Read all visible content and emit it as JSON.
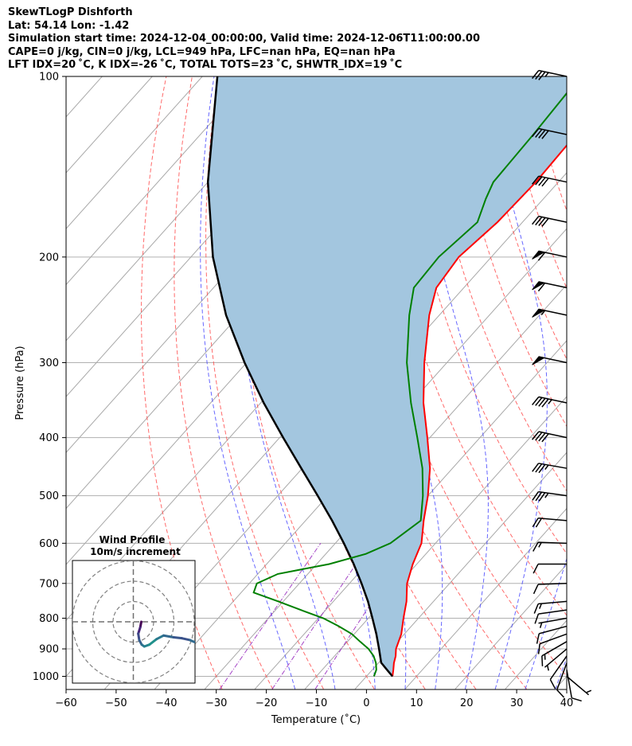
{
  "header": {
    "line1": "SkewTLogP Dishforth",
    "line2": "Lat: 54.14   Lon: -1.42",
    "line3": "Simulation start time: 2024-12-04_00:00:00, Valid time: 2024-12-06T11:00:00.00",
    "line4": "CAPE=0 j/kg, CIN=0 j/kg, LCL=949 hPa, LFC=nan hPa, EQ=nan hPa",
    "line5": "LFT IDX=20 ˚C, K IDX=-26 ˚C, TOTAL TOTS=23 ˚C, SHWTR_IDX=19 ˚C"
  },
  "chart_data": {
    "type": "skewt-logp",
    "title": "SkewTLogP Dishforth",
    "xlabel": "Temperature (˚C)",
    "ylabel": "Pressure (hPa)",
    "xlim": [
      -60,
      40
    ],
    "ylim": [
      1050,
      100
    ],
    "x_ticks": [
      -60,
      -50,
      -40,
      -30,
      -20,
      -10,
      0,
      10,
      20,
      30,
      40
    ],
    "x_tick_labels": [
      "−60",
      "−50",
      "−40",
      "−30",
      "−20",
      "−10",
      "0",
      "10",
      "20",
      "30",
      "40"
    ],
    "y_ticks": [
      1000,
      900,
      800,
      700,
      600,
      500,
      400,
      300,
      200,
      100
    ],
    "y_tick_labels": [
      "1000",
      "900",
      "800",
      "700",
      "600",
      "500",
      "400",
      "300",
      "200",
      "100"
    ],
    "temperature": {
      "name": "Temperature",
      "color": "#ff0000",
      "p": [
        1000,
        975,
        950,
        925,
        900,
        850,
        800,
        750,
        700,
        650,
        600,
        550,
        500,
        450,
        400,
        350,
        300,
        250,
        225,
        200,
        175,
        150,
        125,
        100
      ],
      "t": [
        5.2,
        4.2,
        3.1,
        2.2,
        1.0,
        -0.6,
        -3.0,
        -5.4,
        -8.5,
        -10.8,
        -12.8,
        -16.4,
        -20.0,
        -24.5,
        -30.5,
        -37.5,
        -44.5,
        -52.0,
        -55.5,
        -56.5,
        -55.0,
        -54.5,
        -55.0,
        -55.5
      ]
    },
    "dewpoint": {
      "name": "Dewpoint",
      "color": "#008000",
      "p": [
        1000,
        975,
        950,
        925,
        900,
        875,
        850,
        825,
        800,
        775,
        750,
        725,
        700,
        675,
        650,
        625,
        600,
        550,
        500,
        450,
        400,
        350,
        300,
        250,
        225,
        200,
        175,
        160,
        150,
        125,
        100
      ],
      "td": [
        1.5,
        0.8,
        -0.5,
        -2.2,
        -4.5,
        -7.5,
        -10.5,
        -14.5,
        -19.0,
        -25.0,
        -31.0,
        -37.5,
        -38.5,
        -36.0,
        -27.5,
        -22.0,
        -19.0,
        -17.0,
        -21.0,
        -26.0,
        -32.5,
        -40.0,
        -48.0,
        -56.0,
        -60.0,
        -60.5,
        -59.0,
        -61.5,
        -63.0,
        -63.5,
        -64.5
      ]
    },
    "parcel": {
      "name": "Parcel profile",
      "color": "#000000",
      "p": [
        1000,
        975,
        949,
        900,
        850,
        800,
        750,
        700,
        650,
        600,
        550,
        500,
        450,
        400,
        350,
        300,
        250,
        200,
        150,
        100
      ],
      "t": [
        5.2,
        2.9,
        0.5,
        -2.4,
        -5.6,
        -9.2,
        -13.1,
        -17.6,
        -22.6,
        -28.3,
        -34.7,
        -42.0,
        -50.2,
        -59.3,
        -69.4,
        -80.4,
        -92.6,
        -105.6,
        -120.0,
        -137.0
      ]
    },
    "shaded_area": {
      "name": "CIN region",
      "color": "#a3c6df"
    },
    "skew_reference_lines": {
      "isotherms": "gray",
      "dry_adiabats": "red dashed",
      "moist_adiabats": "blue dashed",
      "mixing_ratio": "purple dash-dot"
    },
    "wind_barbs": {
      "p": [
        1000,
        975,
        950,
        925,
        900,
        875,
        850,
        825,
        800,
        775,
        750,
        700,
        650,
        600,
        550,
        500,
        450,
        400,
        350,
        300,
        250,
        225,
        200,
        175,
        150,
        125,
        100
      ],
      "speed_kt": [
        5,
        10,
        10,
        10,
        5,
        15,
        10,
        10,
        5,
        10,
        15,
        10,
        10,
        15,
        20,
        35,
        35,
        40,
        45,
        50,
        55,
        60,
        60,
        40,
        40,
        40,
        35
      ],
      "dir_deg": [
        130,
        170,
        200,
        215,
        230,
        240,
        250,
        255,
        260,
        262,
        265,
        268,
        270,
        272,
        275,
        278,
        280,
        282,
        282,
        282,
        282,
        282,
        282,
        282,
        282,
        282,
        282
      ]
    },
    "inset": {
      "title": "Wind Profile",
      "subtitle": "10m/s increment",
      "rings_ms": [
        10,
        20,
        30
      ],
      "hodograph_u": [
        0.0,
        -0.5,
        -1.5,
        -1.0,
        0.2,
        1.5,
        4.0,
        7.5,
        11.0,
        16.0,
        20.0,
        24.0,
        27.0
      ],
      "hodograph_v": [
        0.0,
        -3.0,
        -6.5,
        -10.0,
        -12.5,
        -13.5,
        -12.5,
        -9.5,
        -7.5,
        -8.5,
        -9.0,
        -10.0,
        -11.5
      ]
    }
  }
}
